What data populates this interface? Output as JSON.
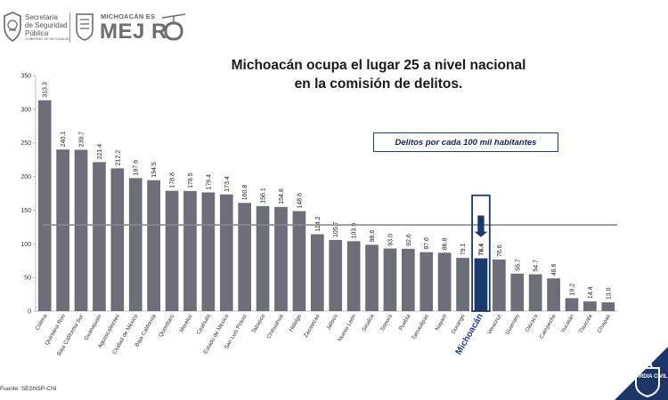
{
  "header": {
    "ssp_line1": "Secretaría",
    "ssp_line2": "de Seguridad",
    "ssp_line3": "Pública",
    "ssp_subtitle": "GOBIERNO DE MICHOACÁN",
    "brand_small": "MICHOACÁN ES",
    "brand_big": "MEJ   R"
  },
  "title_line1": "Michoacán ocupa el lugar 25 a nivel nacional",
  "title_line2": "en la comisión de delitos.",
  "legend_text": "Delitos por cada 100 mil habitantes",
  "source": "Fuente: SESNSP-CNI",
  "badge_text": "GUARDIA CIVIL",
  "colors": {
    "bar": "#6e6e7a",
    "highlight_bar": "#1a3a6e",
    "highlight_label": "#1f3f8c",
    "arrow": "#1a3a6e",
    "average_line": "#8a8a8a",
    "badge_bg": "#1b3566"
  },
  "chart_data": {
    "type": "bar",
    "title": "",
    "xlabel": "",
    "ylabel": "",
    "ylim": [
      0,
      350
    ],
    "yticks": [
      0,
      50,
      100,
      150,
      200,
      250,
      300,
      350
    ],
    "grid": false,
    "reference_line": 128,
    "highlight": "Michoacán",
    "categories": [
      "Colima",
      "Quintana Roo",
      "Baja California Sur",
      "Guanajuato",
      "Aguascalientes",
      "Ciudad de México",
      "Baja California",
      "Querétaro",
      "Morelos",
      "Coahuila",
      "Estado de México",
      "San Luis Potosí",
      "Tabasco",
      "Chihuahua",
      "Hidalgo",
      "Zacatecas",
      "Jalisco",
      "Nuevo León",
      "Sinaloa",
      "Sonora",
      "Puebla",
      "Tamaulipas",
      "Nayarit",
      "Durango",
      "Michoacán",
      "Veracruz",
      "Guerrero",
      "Oaxaca",
      "Campeche",
      "Yucatán",
      "Tlaxcala",
      "Chiapas"
    ],
    "values": [
      313.3,
      240.1,
      239.7,
      221.4,
      212.2,
      197.6,
      194.5,
      178.8,
      178.5,
      176.4,
      173.4,
      160.8,
      156.1,
      154.8,
      148.6,
      114.2,
      105.7,
      103.9,
      98.6,
      93.0,
      92.6,
      87.6,
      86.8,
      79.1,
      78.4,
      76.6,
      55.7,
      54.7,
      48.6,
      19.2,
      14.4,
      13.0
    ],
    "value_labels": [
      "313.3",
      "240.1",
      "239.7",
      "221.4",
      "212.2",
      "197.6",
      "194.5",
      "178.8",
      "178.5",
      "176.4",
      "173.4",
      "160.8",
      "156.1",
      "154.8",
      "148.6",
      "114.2",
      "105.7",
      "103.9",
      "98.6",
      "93.0",
      "92.6",
      "87.6",
      "86.8",
      "79.1",
      "78.4",
      "76.6",
      "55.7",
      "54.7",
      "48.6",
      "19.2",
      "14.4",
      "13.0"
    ]
  }
}
